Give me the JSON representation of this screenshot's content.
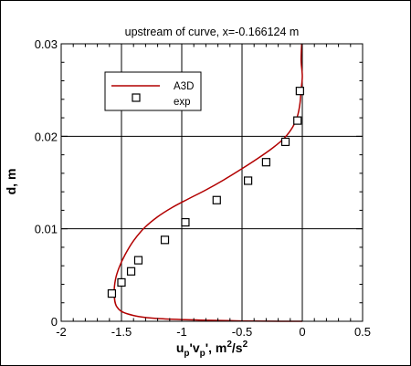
{
  "chart_data": {
    "type": "line",
    "title": "upstream of curve, x=-0.166124 m",
    "xlabel": {
      "base1": "u",
      "sub1": "p",
      "prime1": "'",
      "base2": "v",
      "sub2": "p",
      "prime2": "'",
      "units": ", m",
      "sup1": "2",
      "slash": "/s",
      "sup2": "2"
    },
    "ylabel": "d, m",
    "xlim": [
      -2,
      0.5
    ],
    "ylim": [
      0,
      0.03
    ],
    "xticks": [
      -2,
      -1.5,
      -1,
      -0.5,
      0,
      0.5
    ],
    "xtick_labels": [
      "-2",
      "-1.5",
      "-1",
      "-0.5",
      "0",
      "0.5"
    ],
    "yticks": [
      0,
      0.01,
      0.02,
      0.03
    ],
    "ytick_labels": [
      "0",
      "0.01",
      "0.02",
      "0.03"
    ],
    "grid": true,
    "legend_position": "top-left",
    "series": [
      {
        "name": "A3D",
        "kind": "line",
        "color": "#b20000",
        "x": [
          0.0,
          -0.55,
          -1.2,
          -1.45,
          -1.54,
          -1.56,
          -1.55,
          -1.52,
          -1.47,
          -1.4,
          -1.31,
          -1.2,
          -1.08,
          -0.95,
          -0.8,
          -0.65,
          -0.5,
          -0.37,
          -0.25,
          -0.15,
          -0.08,
          -0.04,
          -0.02,
          -0.01,
          0.0,
          -0.01,
          -0.005
        ],
        "y": [
          0.0,
          5e-05,
          0.0003,
          0.0008,
          0.0016,
          0.003,
          0.0045,
          0.0058,
          0.0072,
          0.0087,
          0.0101,
          0.0113,
          0.0123,
          0.0132,
          0.0142,
          0.0153,
          0.0165,
          0.0176,
          0.0187,
          0.0198,
          0.021,
          0.0222,
          0.0235,
          0.025,
          0.0265,
          0.0282,
          0.03
        ]
      },
      {
        "name": "exp",
        "kind": "scatter",
        "color": "#000000",
        "x": [
          -1.58,
          -1.5,
          -1.42,
          -1.36,
          -1.14,
          -0.97,
          -0.71,
          -0.45,
          -0.3,
          -0.14,
          -0.04,
          -0.02
        ],
        "y": [
          0.003,
          0.0042,
          0.0054,
          0.0066,
          0.0088,
          0.0107,
          0.0131,
          0.0152,
          0.0172,
          0.0194,
          0.0217,
          0.0249
        ]
      }
    ]
  }
}
